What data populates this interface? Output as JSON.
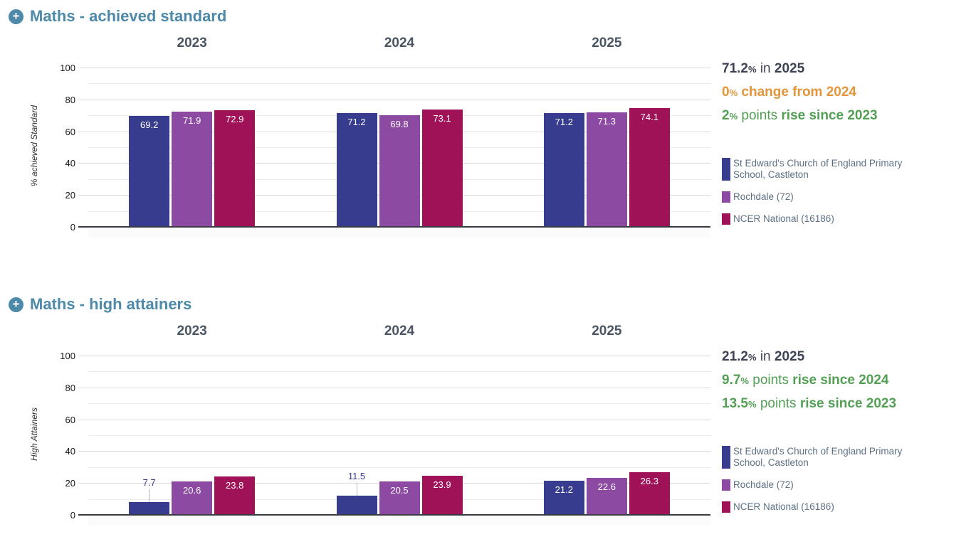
{
  "icons": {
    "plus_glyph": "+"
  },
  "colors": {
    "title": "#4d89a9",
    "year_label": "#4a5563",
    "axis_text": "#16161a",
    "legend_text": "#5d7083",
    "stat_navy": "#3d4355",
    "stat_orange": "#e2953b",
    "stat_green": "#53a055"
  },
  "sections": [
    {
      "title": "Maths - achieved standard",
      "stats": [
        {
          "num": "71.2",
          "unit": "%",
          "mid": " in ",
          "bold": "2025",
          "color": "#3d4355"
        },
        {
          "num": "0",
          "unit": "%",
          "mid": " ",
          "bold": "change from 2024",
          "color": "#e2953b"
        },
        {
          "num": "2",
          "unit": "%",
          "mid": " points ",
          "bold": "rise since 2023",
          "color": "#53a055"
        }
      ],
      "legend": [
        {
          "label": "St Edward's Church of England Primary School, Castleton",
          "color": "#383c8f"
        },
        {
          "label": "Rochdale (72)",
          "color": "#8c4aa3"
        },
        {
          "label": "NCER National (16186)",
          "color": "#a01257"
        }
      ],
      "chart_data": {
        "type": "bar",
        "categories": [
          "2023",
          "2024",
          "2025"
        ],
        "series": [
          {
            "name": "St Edward's Church of England Primary School, Castleton",
            "color": "#383c8f",
            "values": [
              69.2,
              71.2,
              71.2
            ]
          },
          {
            "name": "Rochdale (72)",
            "color": "#8c4aa3",
            "values": [
              71.9,
              69.8,
              71.3
            ]
          },
          {
            "name": "NCER National (16186)",
            "color": "#a01257",
            "values": [
              72.9,
              73.1,
              74.1
            ]
          }
        ],
        "ylabel": "% achieved Standard",
        "ylim": [
          0,
          100
        ],
        "yticks": [
          0,
          20,
          40,
          60,
          80,
          100
        ],
        "grid": "horizontal, minor every 10"
      }
    },
    {
      "title": "Maths - high attainers",
      "stats": [
        {
          "num": "21.2",
          "unit": "%",
          "mid": " in ",
          "bold": "2025",
          "color": "#3d4355"
        },
        {
          "num": "9.7",
          "unit": "%",
          "mid": " points ",
          "bold": "rise since 2024",
          "color": "#53a055"
        },
        {
          "num": "13.5",
          "unit": "%",
          "mid": " points ",
          "bold": "rise since 2023",
          "color": "#53a055"
        }
      ],
      "legend": [
        {
          "label": "St Edward's Church of England Primary School, Castleton",
          "color": "#383c8f"
        },
        {
          "label": "Rochdale (72)",
          "color": "#8c4aa3"
        },
        {
          "label": "NCER National (16186)",
          "color": "#a01257"
        }
      ],
      "chart_data": {
        "type": "bar",
        "categories": [
          "2023",
          "2024",
          "2025"
        ],
        "series": [
          {
            "name": "St Edward's Church of England Primary School, Castleton",
            "color": "#383c8f",
            "values": [
              7.7,
              11.5,
              21.2
            ]
          },
          {
            "name": "Rochdale (72)",
            "color": "#8c4aa3",
            "values": [
              20.6,
              20.5,
              22.6
            ]
          },
          {
            "name": "NCER National (16186)",
            "color": "#a01257",
            "values": [
              23.8,
              23.9,
              26.3
            ]
          }
        ],
        "ylabel": "High Attainers",
        "ylim": [
          0,
          100
        ],
        "yticks": [
          0,
          20,
          40,
          60,
          80,
          100
        ],
        "grid": "horizontal, minor every 10"
      }
    }
  ]
}
